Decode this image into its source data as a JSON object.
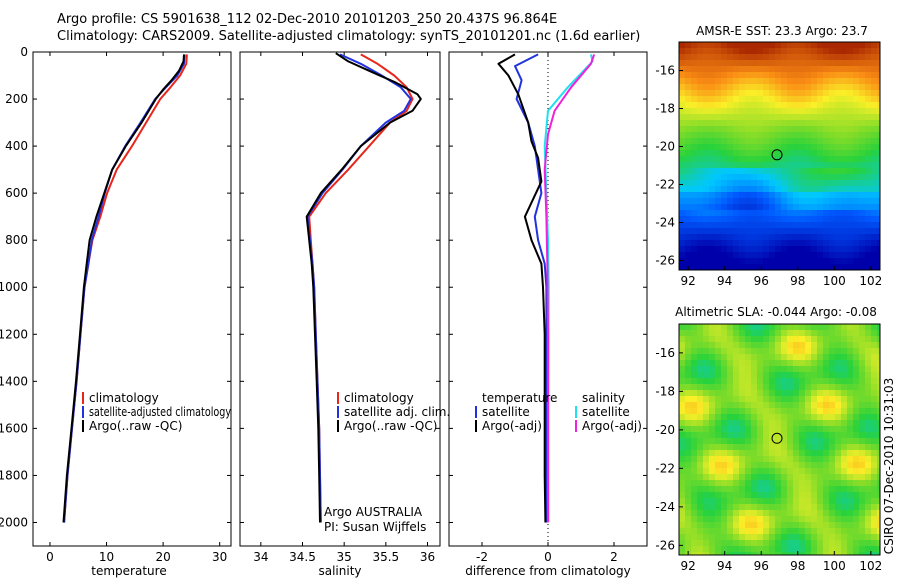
{
  "header": {
    "line1": "Argo profile: CS 5901638_112 02-Dec-2010 20101203_250 20.437S 96.864E",
    "line2": "Climatology: CARS2009. Satellite-adjusted climatology: synTS_20101201.nc (1.6d earlier)"
  },
  "side_label": "CSIRO 07-Dec-2010 10:31:03",
  "colors": {
    "climatology": "#e8261c",
    "satellite": "#2233dd",
    "argo": "#000000",
    "salinity_satellite": "#22e0ee",
    "salinity_argo": "#ee22dd"
  },
  "chart_data": [
    {
      "type": "line",
      "xlabel": "temperature",
      "ylabel": "",
      "xlim": [
        -3,
        32
      ],
      "ylim": [
        0,
        2100
      ],
      "x_ticks": [
        0,
        10,
        20,
        30
      ],
      "y_ticks": [
        0,
        200,
        400,
        600,
        800,
        1000,
        1200,
        1400,
        1600,
        1800,
        2000
      ],
      "legend": {
        "position": "lower-right",
        "entries": [
          "climatology",
          "satellite-adjusted climatology",
          "Argo(..raw -QC)"
        ]
      },
      "series": [
        {
          "name": "climatology",
          "color": "#e8261c",
          "points": [
            [
              24.2,
              10
            ],
            [
              24.1,
              50
            ],
            [
              23.0,
              100
            ],
            [
              21.3,
              150
            ],
            [
              19.5,
              200
            ],
            [
              17.0,
              300
            ],
            [
              14.5,
              400
            ],
            [
              11.8,
              500
            ],
            [
              10.1,
              600
            ],
            [
              8.9,
              700
            ],
            [
              7.5,
              800
            ],
            [
              6.8,
              900
            ],
            [
              6.1,
              1000
            ],
            [
              5.4,
              1200
            ],
            [
              4.7,
              1400
            ],
            [
              3.9,
              1600
            ],
            [
              3.1,
              1800
            ],
            [
              2.5,
              2000
            ]
          ]
        },
        {
          "name": "satellite-adjusted climatology",
          "color": "#2233dd",
          "points": [
            [
              23.8,
              10
            ],
            [
              23.7,
              50
            ],
            [
              22.5,
              100
            ],
            [
              20.5,
              150
            ],
            [
              18.6,
              200
            ],
            [
              16.0,
              300
            ],
            [
              13.3,
              400
            ],
            [
              11.0,
              500
            ],
            [
              9.7,
              600
            ],
            [
              8.6,
              700
            ],
            [
              7.4,
              800
            ],
            [
              6.8,
              900
            ],
            [
              6.1,
              1000
            ],
            [
              5.4,
              1200
            ],
            [
              4.7,
              1400
            ],
            [
              3.9,
              1600
            ],
            [
              3.1,
              1800
            ],
            [
              2.5,
              2000
            ]
          ]
        },
        {
          "name": "Argo(..raw -QC)",
          "color": "#000000",
          "points": [
            [
              23.7,
              10
            ],
            [
              23.6,
              40
            ],
            [
              22.8,
              80
            ],
            [
              21.5,
              120
            ],
            [
              20.0,
              160
            ],
            [
              18.7,
              200
            ],
            [
              16.2,
              300
            ],
            [
              13.4,
              400
            ],
            [
              11.0,
              500
            ],
            [
              9.6,
              600
            ],
            [
              8.2,
              700
            ],
            [
              7.0,
              800
            ],
            [
              6.5,
              900
            ],
            [
              6.0,
              1000
            ],
            [
              5.3,
              1200
            ],
            [
              4.6,
              1400
            ],
            [
              3.8,
              1600
            ],
            [
              3.0,
              1800
            ],
            [
              2.4,
              2000
            ]
          ]
        }
      ]
    },
    {
      "type": "line",
      "xlabel": "salinity",
      "ylabel": "",
      "xlim": [
        33.75,
        36.15
      ],
      "ylim": [
        0,
        2100
      ],
      "x_ticks": [
        34,
        34.5,
        35,
        35.5,
        36
      ],
      "y_ticks": [
        0,
        200,
        400,
        600,
        800,
        1000,
        1200,
        1400,
        1600,
        1800,
        2000
      ],
      "legend": {
        "position": "lower-right",
        "entries": [
          "climatology",
          "satellite adj. clim.",
          "Argo(..raw -QC)"
        ]
      },
      "annotation": [
        "Argo AUSTRALIA",
        "PI: Susan Wijffels"
      ],
      "series": [
        {
          "name": "climatology",
          "color": "#e8261c",
          "points": [
            [
              35.2,
              10
            ],
            [
              35.4,
              50
            ],
            [
              35.6,
              100
            ],
            [
              35.75,
              150
            ],
            [
              35.82,
              200
            ],
            [
              35.75,
              250
            ],
            [
              35.55,
              300
            ],
            [
              35.3,
              400
            ],
            [
              35.05,
              500
            ],
            [
              34.78,
              600
            ],
            [
              34.58,
              700
            ],
            [
              34.6,
              800
            ],
            [
              34.62,
              900
            ],
            [
              34.64,
              1000
            ],
            [
              34.66,
              1200
            ],
            [
              34.68,
              1400
            ],
            [
              34.7,
              1600
            ],
            [
              34.71,
              1800
            ],
            [
              34.72,
              2000
            ]
          ]
        },
        {
          "name": "satellite adj. clim.",
          "color": "#2233dd",
          "points": [
            [
              34.95,
              10
            ],
            [
              35.2,
              50
            ],
            [
              35.45,
              100
            ],
            [
              35.68,
              150
            ],
            [
              35.8,
              200
            ],
            [
              35.72,
              250
            ],
            [
              35.5,
              300
            ],
            [
              35.2,
              400
            ],
            [
              34.98,
              500
            ],
            [
              34.74,
              600
            ],
            [
              34.56,
              700
            ],
            [
              34.59,
              800
            ],
            [
              34.62,
              900
            ],
            [
              34.64,
              1000
            ],
            [
              34.66,
              1200
            ],
            [
              34.68,
              1400
            ],
            [
              34.7,
              1600
            ],
            [
              34.71,
              1800
            ],
            [
              34.72,
              2000
            ]
          ]
        },
        {
          "name": "Argo(..raw -QC)",
          "color": "#000000",
          "points": [
            [
              34.9,
              5
            ],
            [
              35.05,
              40
            ],
            [
              35.3,
              80
            ],
            [
              35.62,
              130
            ],
            [
              35.88,
              180
            ],
            [
              35.92,
              200
            ],
            [
              35.82,
              250
            ],
            [
              35.55,
              300
            ],
            [
              35.2,
              400
            ],
            [
              34.97,
              500
            ],
            [
              34.72,
              600
            ],
            [
              34.55,
              700
            ],
            [
              34.58,
              800
            ],
            [
              34.61,
              900
            ],
            [
              34.63,
              1000
            ],
            [
              34.65,
              1200
            ],
            [
              34.67,
              1400
            ],
            [
              34.69,
              1600
            ],
            [
              34.7,
              1800
            ],
            [
              34.71,
              2000
            ]
          ]
        }
      ]
    },
    {
      "type": "line",
      "xlabel": "difference from climatology",
      "ylabel": "",
      "xlim": [
        -3,
        3
      ],
      "ylim": [
        0,
        2100
      ],
      "x_ticks": [
        -2,
        0,
        2
      ],
      "y_ticks": [
        0,
        200,
        400,
        600,
        800,
        1000,
        1200,
        1400,
        1600,
        1800,
        2000
      ],
      "reference_line": 0,
      "legend": {
        "position": "lower",
        "temperature_header": "temperature",
        "salinity_header": "salinity",
        "entries": [
          "satellite",
          "Argo(-adj)",
          "satellite",
          "Argo(-adj)"
        ]
      },
      "series": [
        {
          "name": "temperature satellite",
          "color": "#2233dd",
          "points": [
            [
              -0.3,
              10
            ],
            [
              -1.0,
              60
            ],
            [
              -0.8,
              120
            ],
            [
              -0.95,
              200
            ],
            [
              -0.6,
              300
            ],
            [
              -0.4,
              400
            ],
            [
              -0.3,
              500
            ],
            [
              -0.2,
              600
            ],
            [
              -0.4,
              700
            ],
            [
              -0.3,
              800
            ],
            [
              -0.1,
              900
            ],
            [
              -0.05,
              1000
            ],
            [
              -0.05,
              1200
            ],
            [
              -0.05,
              1600
            ],
            [
              -0.05,
              2000
            ]
          ]
        },
        {
          "name": "temperature Argo(-adj)",
          "color": "#000000",
          "points": [
            [
              -1.0,
              10
            ],
            [
              -1.5,
              50
            ],
            [
              -1.2,
              100
            ],
            [
              -0.9,
              180
            ],
            [
              -0.6,
              300
            ],
            [
              -0.5,
              380
            ],
            [
              -0.3,
              450
            ],
            [
              -0.2,
              550
            ],
            [
              -0.7,
              700
            ],
            [
              -0.5,
              800
            ],
            [
              -0.2,
              900
            ],
            [
              -0.15,
              1000
            ],
            [
              -0.1,
              1200
            ],
            [
              -0.1,
              1500
            ],
            [
              -0.1,
              1800
            ],
            [
              -0.08,
              2000
            ]
          ]
        },
        {
          "name": "salinity satellite",
          "color": "#22e0ee",
          "points": [
            [
              1.3,
              10
            ],
            [
              1.35,
              40
            ],
            [
              0.6,
              150
            ],
            [
              0.0,
              250
            ],
            [
              -0.1,
              400
            ],
            [
              -0.05,
              600
            ],
            [
              0.0,
              800
            ],
            [
              0.02,
              1000
            ],
            [
              0.01,
              1500
            ],
            [
              0.01,
              2000
            ]
          ]
        },
        {
          "name": "salinity Argo(-adj)",
          "color": "#ee22dd",
          "points": [
            [
              1.4,
              10
            ],
            [
              1.3,
              50
            ],
            [
              0.7,
              150
            ],
            [
              0.2,
              250
            ],
            [
              0.0,
              350
            ],
            [
              -0.1,
              500
            ],
            [
              -0.05,
              700
            ],
            [
              -0.02,
              900
            ],
            [
              0.0,
              1200
            ],
            [
              0.0,
              2000
            ]
          ]
        }
      ]
    },
    {
      "type": "heatmap",
      "title": "AMSR-E SST: 23.3  Argo: 23.7",
      "xlim": [
        91.5,
        102.5
      ],
      "ylim": [
        -26.5,
        -14.5
      ],
      "x_ticks": [
        92,
        94,
        96,
        98,
        100,
        102
      ],
      "y_ticks": [
        -16,
        -18,
        -20,
        -22,
        -24,
        -26
      ],
      "marker": {
        "lon": 96.864,
        "lat": -20.437
      }
    },
    {
      "type": "heatmap",
      "title": "Altimetric SLA: -0.044  Argo: -0.08",
      "xlim": [
        91.5,
        102.5
      ],
      "ylim": [
        -26.5,
        -14.5
      ],
      "x_ticks": [
        92,
        94,
        96,
        98,
        100,
        102
      ],
      "y_ticks": [
        -16,
        -18,
        -20,
        -22,
        -24,
        -26
      ],
      "marker": {
        "lon": 96.864,
        "lat": -20.437
      }
    }
  ]
}
